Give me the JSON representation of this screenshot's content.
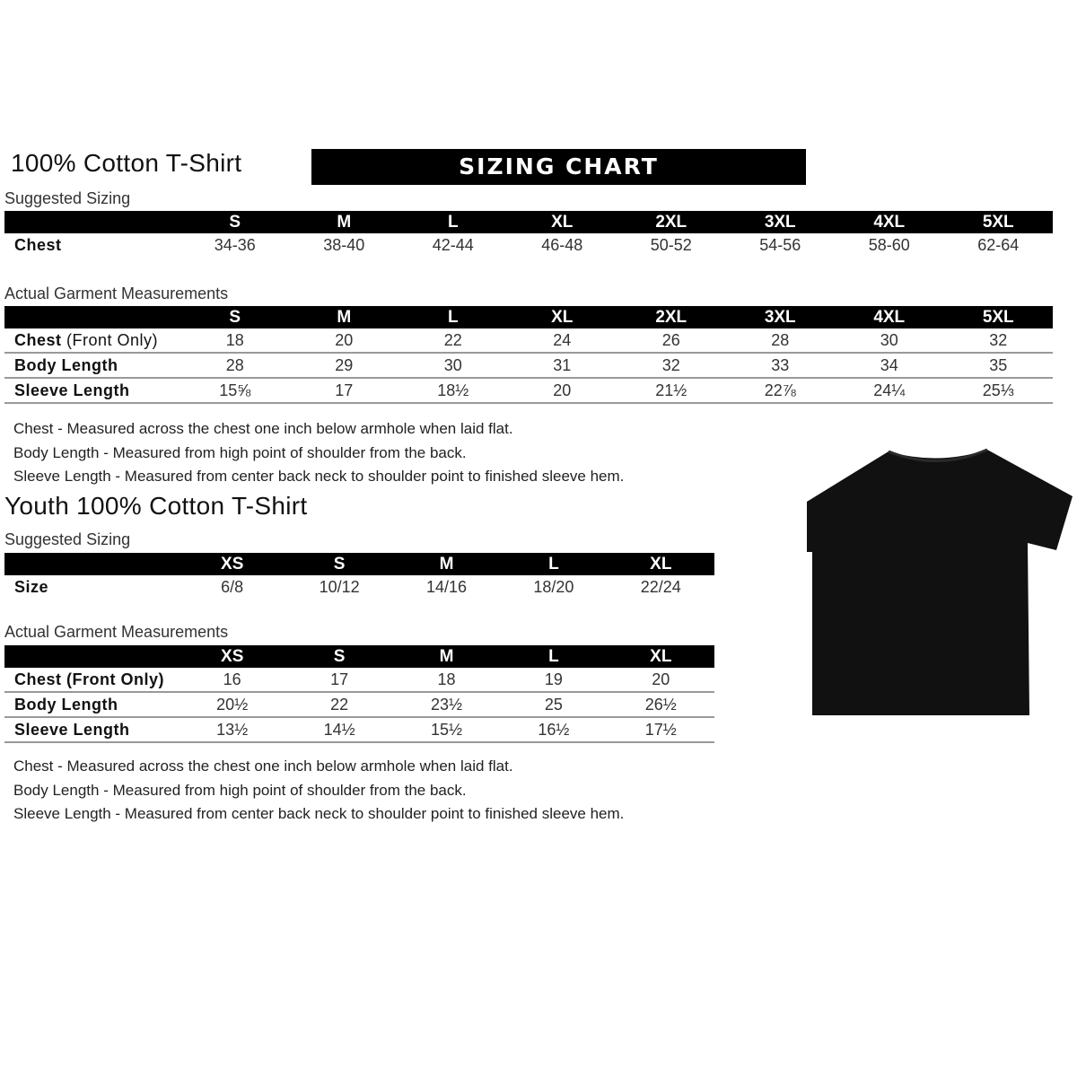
{
  "adult": {
    "title": "100% Cotton T-Shirt",
    "banner": "SIZING CHART",
    "suggested_label": "Suggested Sizing",
    "sizes": [
      "S",
      "M",
      "L",
      "XL",
      "2XL",
      "3XL",
      "4XL",
      "5XL"
    ],
    "suggested_rows": [
      {
        "label": "Chest",
        "values": [
          "34-36",
          "38-40",
          "42-44",
          "46-48",
          "50-52",
          "54-56",
          "58-60",
          "62-64"
        ]
      }
    ],
    "actual_label": "Actual Garment Measurements",
    "actual_rows": [
      {
        "label": "Chest",
        "label_note": " (Front Only)",
        "values": [
          "18",
          "20",
          "22",
          "24",
          "26",
          "28",
          "30",
          "32"
        ]
      },
      {
        "label": "Body Length",
        "label_note": "",
        "values": [
          "28",
          "29",
          "30",
          "31",
          "32",
          "33",
          "34",
          "35"
        ]
      },
      {
        "label": "Sleeve Length",
        "label_note": "",
        "values": [
          "15⅝",
          "17",
          "18½",
          "20",
          "21½",
          "22⅞",
          "24¼",
          "25⅓"
        ]
      }
    ],
    "notes": [
      "Chest - Measured across the chest one inch below armhole when laid flat.",
      "Body Length - Measured from high point of shoulder from the back.",
      "Sleeve Length - Measured from center back neck to shoulder point to finished sleeve hem."
    ]
  },
  "youth": {
    "title": "Youth 100% Cotton T-Shirt",
    "suggested_label": "Suggested Sizing",
    "sizes": [
      "XS",
      "S",
      "M",
      "L",
      "XL"
    ],
    "suggested_rows": [
      {
        "label": "Size",
        "values": [
          "6/8",
          "10/12",
          "14/16",
          "18/20",
          "22/24"
        ]
      }
    ],
    "actual_label": "Actual Garment Measurements",
    "actual_rows": [
      {
        "label": "Chest (Front Only)",
        "values": [
          "16",
          "17",
          "18",
          "19",
          "20"
        ]
      },
      {
        "label": "Body Length",
        "values": [
          "20½",
          "22",
          "23½",
          "25",
          "26½"
        ]
      },
      {
        "label": "Sleeve Length",
        "values": [
          "13½",
          "14½",
          "15½",
          "16½",
          "17½"
        ]
      }
    ],
    "notes": [
      "Chest - Measured across the chest one inch below armhole when laid flat.",
      "Body Length - Measured from high point of shoulder from the back.",
      "Sleeve Length - Measured from center back neck to shoulder point to finished sleeve hem."
    ]
  },
  "image": {
    "icon": "black-tshirt-icon",
    "color": "#111111"
  }
}
